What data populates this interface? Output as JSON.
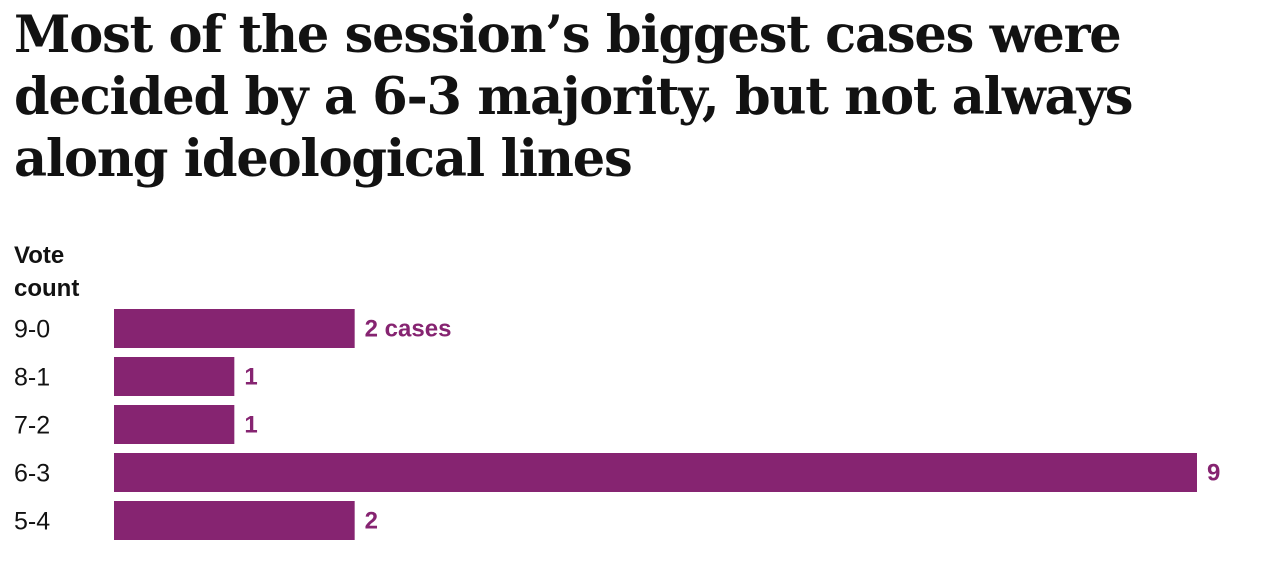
{
  "headline": "Most of the session’s biggest cases were decided by a 6-3 majority, but not always along ideological lines",
  "chart_data": {
    "type": "bar",
    "orientation": "horizontal",
    "y_axis_title": "Vote count",
    "categories": [
      "9-0",
      "8-1",
      "7-2",
      "6-3",
      "5-4"
    ],
    "values": [
      2,
      1,
      1,
      9,
      2
    ],
    "value_labels": [
      "2 cases",
      "1",
      "1",
      "9",
      "2"
    ],
    "xlim": [
      0,
      9
    ],
    "grid": false,
    "legend": "none",
    "bar_color": "#862471",
    "label_color": "#862471"
  }
}
